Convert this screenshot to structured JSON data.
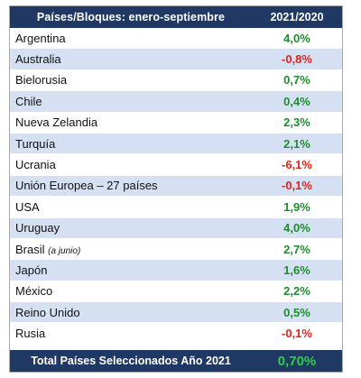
{
  "table": {
    "header": {
      "label": "Países/Bloques: enero-septiembre",
      "period": "2021/2020"
    },
    "rows": [
      {
        "country": "Argentina",
        "note": "",
        "value": "4,0%",
        "trend": "positive"
      },
      {
        "country": "Australia",
        "note": "",
        "value": "-0,8%",
        "trend": "negative"
      },
      {
        "country": "Bielorusia",
        "note": "",
        "value": "0,7%",
        "trend": "positive"
      },
      {
        "country": "Chile",
        "note": "",
        "value": "0,4%",
        "trend": "positive"
      },
      {
        "country": "Nueva Zelandia",
        "note": "",
        "value": "2,3%",
        "trend": "positive"
      },
      {
        "country": "Turquía",
        "note": "",
        "value": "2,1%",
        "trend": "positive"
      },
      {
        "country": "Ucrania",
        "note": "",
        "value": "-6,1%",
        "trend": "negative"
      },
      {
        "country": "Unión Europea – 27 países",
        "note": "",
        "value": "-0,1%",
        "trend": "negative"
      },
      {
        "country": "USA",
        "note": "",
        "value": "1,9%",
        "trend": "positive"
      },
      {
        "country": "Uruguay",
        "note": "",
        "value": "4,0%",
        "trend": "positive"
      },
      {
        "country": "Brasil",
        "note": "(a junio)",
        "value": "2,7%",
        "trend": "positive"
      },
      {
        "country": "Japón",
        "note": "",
        "value": "1,6%",
        "trend": "positive"
      },
      {
        "country": "México",
        "note": "",
        "value": "2,2%",
        "trend": "positive"
      },
      {
        "country": "Reino Unido",
        "note": "",
        "value": "0,5%",
        "trend": "positive"
      },
      {
        "country": "Rusia",
        "note": "",
        "value": "-0,1%",
        "trend": "negative"
      }
    ],
    "footer": {
      "label": "Total Países Seleccionados Año 2021",
      "value": "0,70%"
    },
    "colors": {
      "header_bg": "#1f3864",
      "stripe": "#d6e0f3",
      "positive": "#1e8c2e",
      "negative": "#e0261b",
      "total_value": "#2fd04a"
    }
  }
}
